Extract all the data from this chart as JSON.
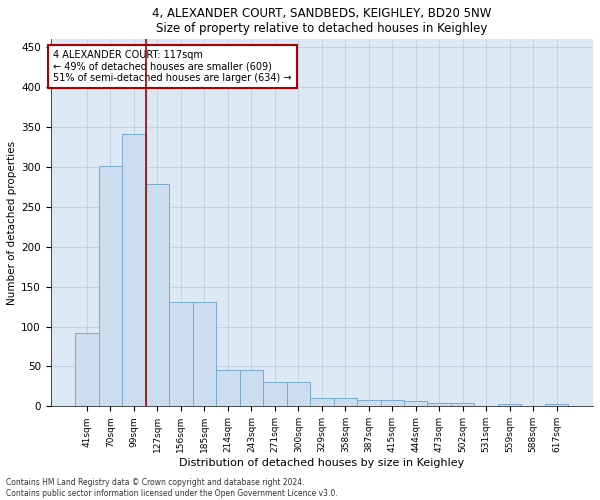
{
  "title1": "4, ALEXANDER COURT, SANDBEDS, KEIGHLEY, BD20 5NW",
  "title2": "Size of property relative to detached houses in Keighley",
  "xlabel": "Distribution of detached houses by size in Keighley",
  "ylabel": "Number of detached properties",
  "categories": [
    "41sqm",
    "70sqm",
    "99sqm",
    "127sqm",
    "156sqm",
    "185sqm",
    "214sqm",
    "243sqm",
    "271sqm",
    "300sqm",
    "329sqm",
    "358sqm",
    "387sqm",
    "415sqm",
    "444sqm",
    "473sqm",
    "502sqm",
    "531sqm",
    "559sqm",
    "588sqm",
    "617sqm"
  ],
  "values": [
    92,
    301,
    341,
    278,
    131,
    131,
    46,
    46,
    30,
    30,
    10,
    10,
    8,
    8,
    7,
    4,
    4,
    0,
    3,
    0,
    3
  ],
  "bar_color": "#ccddf0",
  "bar_edge_color": "#7aaad0",
  "vline_x_index": 2.5,
  "vline_color": "#aa0000",
  "annotation_text": "4 ALEXANDER COURT: 117sqm\n← 49% of detached houses are smaller (609)\n51% of semi-detached houses are larger (634) →",
  "annotation_box_color": "#ffffff",
  "annotation_box_edge": "#aa0000",
  "ylim": [
    0,
    460
  ],
  "yticks": [
    0,
    50,
    100,
    150,
    200,
    250,
    300,
    350,
    400,
    450
  ],
  "grid_color": "#c0cce0",
  "background_color": "#dde8f5",
  "footer1": "Contains HM Land Registry data © Crown copyright and database right 2024.",
  "footer2": "Contains public sector information licensed under the Open Government Licence v3.0."
}
